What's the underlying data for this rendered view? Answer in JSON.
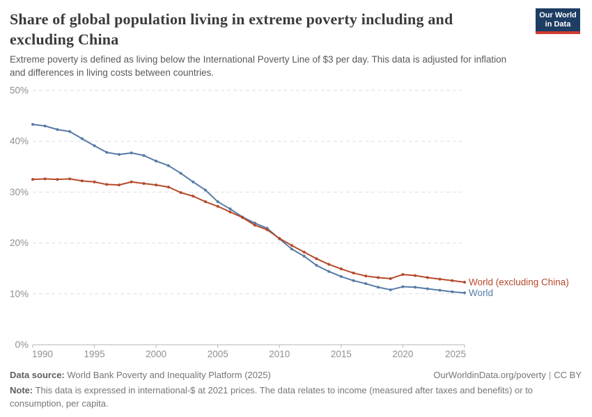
{
  "header": {
    "title_lines": [
      "Share of global population living in extreme poverty including and",
      "excluding China"
    ],
    "subtitle_lines": [
      "Extreme poverty is defined as living below the International Poverty Line of $3 per day. This data is adjusted for inflation",
      "and differences in living costs between countries."
    ]
  },
  "logo": {
    "line1": "Our World",
    "line2": "in Data",
    "bg_color": "#1d3d63",
    "stripe_color": "#cf3a31"
  },
  "chart_data": {
    "type": "line",
    "title": "Share of global population living in extreme poverty including and excluding China",
    "subtitle": "Extreme poverty is defined as living below the International Poverty Line of $3 per day. This data is adjusted for inflation and differences in living costs between countries.",
    "xlim": [
      1990,
      2025
    ],
    "ylim": [
      0,
      50
    ],
    "grid": "horizontal-dashed",
    "legend_position": "end-of-line-labels",
    "x_ticks": [
      1990,
      1995,
      2000,
      2005,
      2010,
      2015,
      2020,
      2025
    ],
    "y_ticks": [
      {
        "value": 0,
        "label": "0%"
      },
      {
        "value": 10,
        "label": "10%"
      },
      {
        "value": 20,
        "label": "20%"
      },
      {
        "value": 30,
        "label": "30%"
      },
      {
        "value": 40,
        "label": "40%"
      },
      {
        "value": 50,
        "label": "50%"
      }
    ],
    "x": [
      1990,
      1991,
      1992,
      1993,
      1994,
      1995,
      1996,
      1997,
      1998,
      1999,
      2000,
      2001,
      2002,
      2003,
      2004,
      2005,
      2006,
      2007,
      2008,
      2009,
      2010,
      2011,
      2012,
      2013,
      2014,
      2015,
      2016,
      2017,
      2018,
      2019,
      2020,
      2021,
      2022,
      2023,
      2024,
      2025
    ],
    "series": [
      {
        "name": "World",
        "color": "#567aa6",
        "values": [
          43.3,
          43.0,
          42.3,
          41.9,
          40.5,
          39.1,
          37.8,
          37.4,
          37.7,
          37.2,
          36.1,
          35.2,
          33.7,
          32.0,
          30.4,
          28.1,
          26.7,
          25.1,
          23.9,
          22.9,
          20.8,
          18.8,
          17.4,
          15.6,
          14.4,
          13.4,
          12.6,
          12.0,
          11.3,
          10.8,
          11.4,
          11.3,
          11.0,
          10.7,
          10.4,
          10.2
        ]
      },
      {
        "name": "World (excluding China)",
        "color": "#b5492b",
        "values": [
          32.5,
          32.6,
          32.5,
          32.6,
          32.2,
          32.0,
          31.5,
          31.4,
          32.0,
          31.7,
          31.4,
          31.0,
          29.9,
          29.2,
          28.1,
          27.2,
          26.1,
          25.0,
          23.5,
          22.6,
          20.9,
          19.5,
          18.2,
          16.9,
          15.8,
          14.9,
          14.1,
          13.5,
          13.2,
          13.0,
          13.8,
          13.6,
          13.2,
          12.9,
          12.6,
          12.3
        ]
      }
    ]
  },
  "footer": {
    "source_label": "Data source:",
    "source_value": "World Bank Poverty and Inequality Platform (2025)",
    "url": "OurWorldinData.org/poverty",
    "separator": "|",
    "license": "CC BY",
    "note_label": "Note:",
    "note_line1": "This data is expressed in international-$ at 2021 prices. The data relates to income (measured after taxes and benefits) or to",
    "note_line2": "consumption, per capita."
  }
}
